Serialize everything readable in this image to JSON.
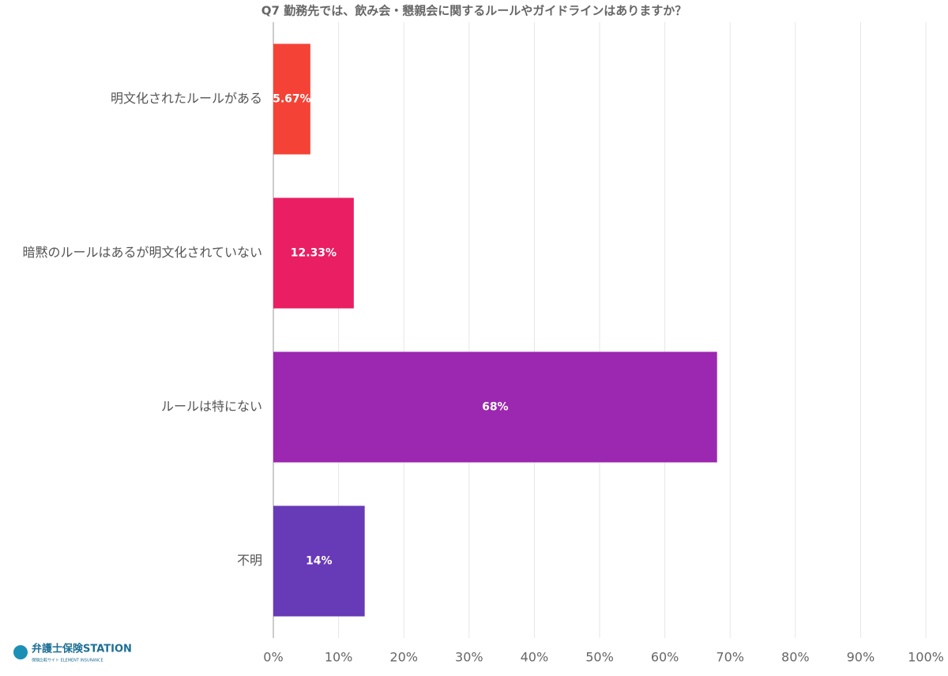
{
  "chart_data": {
    "type": "bar",
    "orientation": "horizontal",
    "title": "Q7 勤務先では、飲み会・懇親会に関するルールやガイドラインはありますか？",
    "categories": [
      "明文化されたルールがある",
      "暗黙のルールはあるが明文化されていない",
      "ルールは特にない",
      "不明"
    ],
    "values": [
      5.67,
      12.33,
      68,
      14
    ],
    "value_labels": [
      "5.67%",
      "12.33%",
      "68%",
      "14%"
    ],
    "colors": [
      "#f44336",
      "#e91e63",
      "#9c27b0",
      "#673ab7"
    ],
    "xlim": [
      0,
      100
    ],
    "xticks": [
      {
        "value": 0,
        "label": "0%"
      },
      {
        "value": 10,
        "label": "10%"
      },
      {
        "value": 20,
        "label": "20%"
      },
      {
        "value": 30,
        "label": "30%"
      },
      {
        "value": 40,
        "label": "40%"
      },
      {
        "value": 50,
        "label": "50%"
      },
      {
        "value": 60,
        "label": "60%"
      },
      {
        "value": 70,
        "label": "70%"
      },
      {
        "value": 80,
        "label": "80%"
      },
      {
        "value": 90,
        "label": "90%"
      },
      {
        "value": 100,
        "label": "100%"
      }
    ],
    "grid": true
  },
  "logo": {
    "name": "弁護士保険STATION",
    "subtitle": "保険比較サイト ELEMENT INSURANCE"
  }
}
